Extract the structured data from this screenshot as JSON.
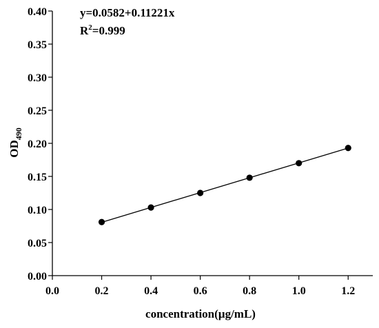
{
  "chart_data": {
    "type": "scatter",
    "title": "",
    "xlabel": "concentration(µg/mL)",
    "ylabel": {
      "main": "OD",
      "subscript": "490"
    },
    "xlim": [
      0.0,
      1.3
    ],
    "ylim": [
      0.0,
      0.4
    ],
    "x_ticks": [
      0.0,
      0.2,
      0.4,
      0.6,
      0.8,
      1.0,
      1.2
    ],
    "x_tick_labels": [
      "0.0",
      "0.2",
      "0.4",
      "0.6",
      "0.8",
      "1.0",
      "1.2"
    ],
    "y_ticks": [
      0.0,
      0.05,
      0.1,
      0.15,
      0.2,
      0.25,
      0.3,
      0.35,
      0.4
    ],
    "y_tick_labels": [
      "0.00",
      "0.05",
      "0.10",
      "0.15",
      "0.20",
      "0.25",
      "0.30",
      "0.35",
      "0.40"
    ],
    "grid": false,
    "legend": false,
    "series": [
      {
        "x": [
          0.2,
          0.4,
          0.6,
          0.8,
          1.0,
          1.2
        ],
        "y": [
          0.081,
          0.103,
          0.125,
          0.148,
          0.17,
          0.193
        ],
        "marker": "filled-circle",
        "color": "#000000"
      }
    ],
    "fit_line": {
      "intercept": 0.0582,
      "slope": 0.11221,
      "x_range": [
        0.2,
        1.2
      ],
      "color": "#000000"
    },
    "annotations": {
      "equation": "y=0.0582+0.11221x",
      "r_squared_prefix": "R",
      "r_squared_sup": "2",
      "r_squared_value": "=0.999"
    }
  }
}
